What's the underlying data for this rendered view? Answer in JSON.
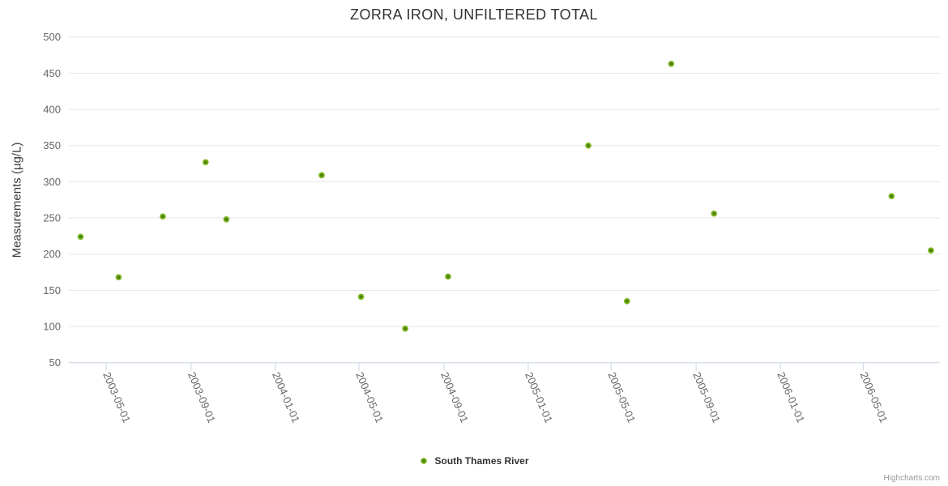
{
  "chart_data": {
    "type": "scatter",
    "title": "ZORRA IRON, UNFILTERED TOTAL",
    "xlabel": "",
    "ylabel": "Measurements (µg/L)",
    "ylim": [
      50,
      500
    ],
    "y_ticks": [
      50,
      100,
      150,
      200,
      250,
      300,
      350,
      400,
      450,
      500
    ],
    "x_ticks": [
      "2003-05-01",
      "2003-09-01",
      "2004-01-01",
      "2004-05-01",
      "2004-09-01",
      "2005-01-01",
      "2005-05-01",
      "2005-09-01",
      "2006-01-01",
      "2006-05-01"
    ],
    "x_range": [
      "2003-03-08",
      "2006-08-20"
    ],
    "grid": true,
    "legend_position": "bottom-center",
    "series": [
      {
        "name": "South Thames River",
        "color": "#79b51c",
        "marker_inner_color": "#4e7a0c",
        "points": [
          {
            "date": "2003-03-25",
            "value": 224
          },
          {
            "date": "2003-05-19",
            "value": 168
          },
          {
            "date": "2003-07-22",
            "value": 252
          },
          {
            "date": "2003-09-22",
            "value": 327
          },
          {
            "date": "2003-10-22",
            "value": 248
          },
          {
            "date": "2004-03-08",
            "value": 309
          },
          {
            "date": "2004-05-04",
            "value": 141
          },
          {
            "date": "2004-07-07",
            "value": 97
          },
          {
            "date": "2004-09-07",
            "value": 169
          },
          {
            "date": "2005-03-29",
            "value": 350
          },
          {
            "date": "2005-05-24",
            "value": 135
          },
          {
            "date": "2005-07-27",
            "value": 463
          },
          {
            "date": "2005-09-27",
            "value": 256
          },
          {
            "date": "2006-06-11",
            "value": 280
          },
          {
            "date": "2006-08-07",
            "value": 205
          }
        ]
      }
    ]
  },
  "colors": {
    "gridline": "#e6e6e6",
    "axis_line": "#ccd6eb",
    "tick_label": "#666666",
    "title": "#333333"
  },
  "footer": {
    "credit": "Highcharts.com"
  }
}
